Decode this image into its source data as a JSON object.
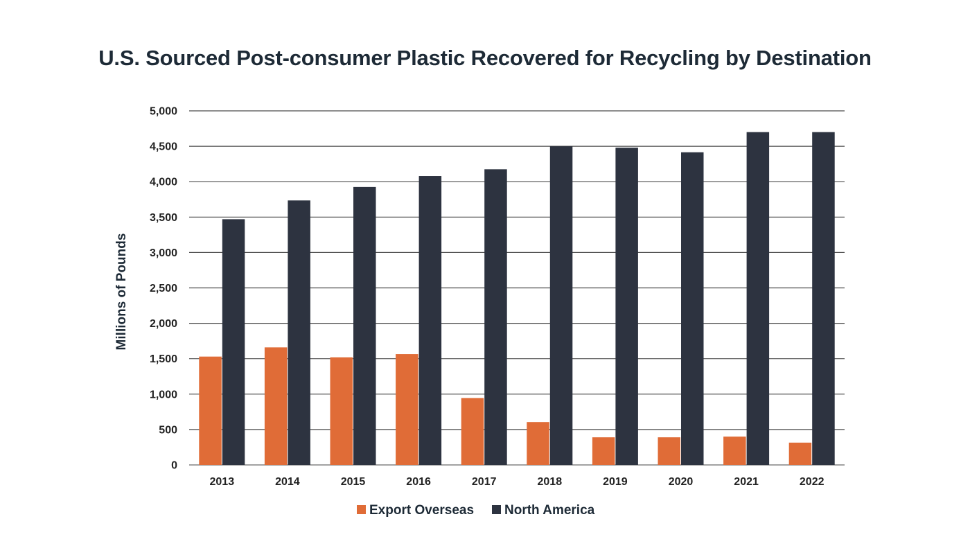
{
  "chart_data": {
    "type": "bar",
    "title": "U.S. Sourced Post-consumer Plastic Recovered for Recycling by Destination",
    "xlabel": "",
    "ylabel": "Millions of Pounds",
    "ylim": [
      0,
      5000
    ],
    "yticks": [
      0,
      500,
      1000,
      1500,
      2000,
      2500,
      3000,
      3500,
      4000,
      4500,
      5000
    ],
    "ytick_labels": [
      "0",
      "500",
      "1,000",
      "1,500",
      "2,000",
      "2,500",
      "3,000",
      "3,500",
      "4,000",
      "4,500",
      "5,000"
    ],
    "grid": "horizontal",
    "legend_position": "bottom-center",
    "categories": [
      "2013",
      "2014",
      "2015",
      "2016",
      "2017",
      "2018",
      "2019",
      "2020",
      "2021",
      "2022"
    ],
    "series": [
      {
        "name": "Export Overseas",
        "color": "#e06c37",
        "values": [
          1530,
          1660,
          1520,
          1565,
          945,
          605,
          390,
          390,
          400,
          315
        ]
      },
      {
        "name": "North America",
        "color": "#2d3340",
        "values": [
          3470,
          3735,
          3925,
          4080,
          4175,
          4500,
          4480,
          4415,
          4700,
          4700
        ]
      }
    ]
  }
}
